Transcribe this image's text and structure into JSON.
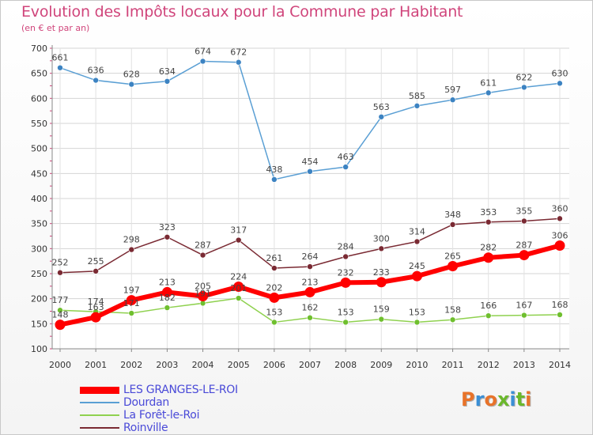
{
  "title": "Evolution des Impôts locaux pour la Commune par Habitant",
  "subtitle": "(en € et par an)",
  "logo_text": "Proxiti",
  "logo_colors": [
    "#e8732a",
    "#3a8fd6",
    "#e8732a",
    "#6bb82c",
    "#3a8fd6",
    "#6bb82c",
    "#e8732a"
  ],
  "chart_data": {
    "type": "line",
    "x": [
      "2000",
      "2001",
      "2002",
      "2003",
      "2004",
      "2005",
      "2006",
      "2007",
      "2008",
      "2009",
      "2010",
      "2011",
      "2012",
      "2013",
      "2014"
    ],
    "ylim": [
      100,
      700
    ],
    "yticks": [
      100,
      150,
      200,
      250,
      300,
      350,
      400,
      450,
      500,
      550,
      600,
      650,
      700
    ],
    "grid": true,
    "legend_position": "bottom-left",
    "series": [
      {
        "name": "Dourdan",
        "color": "#5a9fd4",
        "marker": "#3c83c2",
        "width": 1.5,
        "radius": 3.5,
        "values": [
          661,
          636,
          628,
          634,
          674,
          672,
          438,
          454,
          463,
          563,
          585,
          597,
          611,
          622,
          630
        ]
      },
      {
        "name": "Roinville",
        "color": "#7a2a33",
        "marker": "#7a2a33",
        "width": 1.5,
        "radius": 3.5,
        "values": [
          252,
          255,
          298,
          323,
          287,
          317,
          261,
          264,
          284,
          300,
          314,
          348,
          353,
          355,
          360
        ]
      },
      {
        "name": "La Forêt-le-Roi",
        "color": "#8fd14f",
        "marker": "#6fbf2e",
        "width": 1.5,
        "radius": 3.5,
        "values": [
          177,
          174,
          171,
          182,
          191,
          201,
          153,
          162,
          153,
          159,
          153,
          158,
          166,
          167,
          168
        ]
      },
      {
        "name": "LES GRANGES-LE-ROI",
        "color": "#ff0000",
        "marker": "#ff0000",
        "width": 6,
        "radius": 6.5,
        "values": [
          148,
          163,
          197,
          213,
          205,
          224,
          202,
          213,
          232,
          233,
          245,
          265,
          282,
          287,
          306
        ]
      }
    ],
    "legend_order": [
      "LES GRANGES-LE-ROI",
      "Dourdan",
      "La Forêt-le-Roi",
      "Roinville"
    ]
  }
}
